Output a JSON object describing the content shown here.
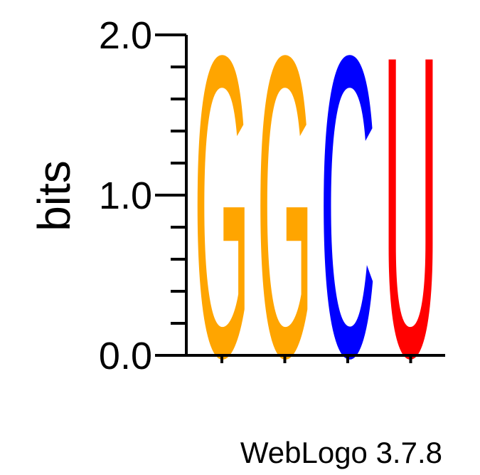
{
  "chart_data": {
    "type": "sequence-logo",
    "ylabel": "bits",
    "ylim": [
      0,
      2.0
    ],
    "yticks": [
      "0.0",
      "1.0",
      "2.0"
    ],
    "positions": [
      {
        "letter": "G",
        "bits": 2.0,
        "color": "#FFA500"
      },
      {
        "letter": "G",
        "bits": 2.0,
        "color": "#FFA500"
      },
      {
        "letter": "C",
        "bits": 2.0,
        "color": "#0000FF"
      },
      {
        "letter": "U",
        "bits": 2.0,
        "color": "#FF0000"
      }
    ]
  },
  "footer": {
    "credit": "WebLogo 3.7.8"
  }
}
